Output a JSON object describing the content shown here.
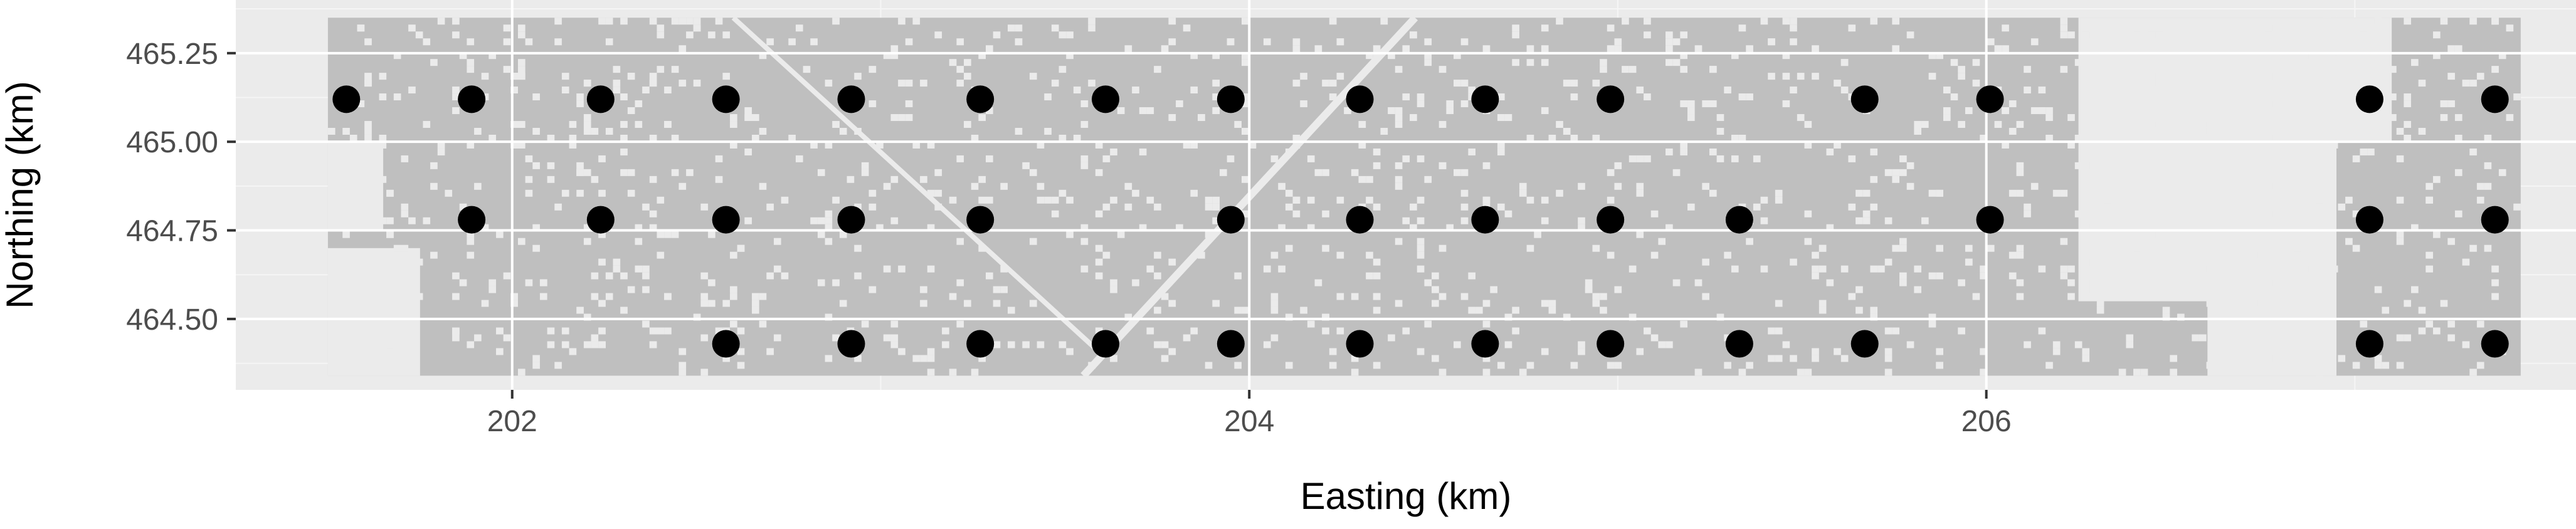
{
  "chart_data": {
    "type": "scatter",
    "xlabel": "Easting (km)",
    "ylabel": "Northing (km)",
    "xlim": [
      201.25,
      207.6
    ],
    "ylim": [
      464.3,
      465.4
    ],
    "x_ticks": [
      202,
      204,
      206
    ],
    "x_tick_labels": [
      "202",
      "204",
      "206"
    ],
    "y_ticks": [
      464.5,
      464.75,
      465.0,
      465.25
    ],
    "y_tick_labels": [
      "464.50",
      "464.75",
      "465.00",
      "465.25"
    ],
    "grid": true,
    "legend": "none",
    "background_raster": {
      "extent_x": [
        201.5,
        207.45
      ],
      "extent_y": [
        464.34,
        465.35
      ],
      "color": "#bfbfbf",
      "panel_color": "#ebebeb"
    },
    "point_color": "#000000",
    "points": [
      {
        "x": 201.55,
        "y": 465.12
      },
      {
        "x": 201.89,
        "y": 465.12
      },
      {
        "x": 202.24,
        "y": 465.12
      },
      {
        "x": 202.58,
        "y": 465.12
      },
      {
        "x": 202.92,
        "y": 465.12
      },
      {
        "x": 203.27,
        "y": 465.12
      },
      {
        "x": 203.61,
        "y": 465.12
      },
      {
        "x": 203.95,
        "y": 465.12
      },
      {
        "x": 204.3,
        "y": 465.12
      },
      {
        "x": 204.64,
        "y": 465.12
      },
      {
        "x": 204.98,
        "y": 465.12
      },
      {
        "x": 205.67,
        "y": 465.12
      },
      {
        "x": 206.01,
        "y": 465.12
      },
      {
        "x": 207.04,
        "y": 465.12
      },
      {
        "x": 207.38,
        "y": 465.12
      },
      {
        "x": 201.89,
        "y": 464.78
      },
      {
        "x": 202.24,
        "y": 464.78
      },
      {
        "x": 202.58,
        "y": 464.78
      },
      {
        "x": 202.92,
        "y": 464.78
      },
      {
        "x": 203.27,
        "y": 464.78
      },
      {
        "x": 203.95,
        "y": 464.78
      },
      {
        "x": 204.3,
        "y": 464.78
      },
      {
        "x": 204.64,
        "y": 464.78
      },
      {
        "x": 204.98,
        "y": 464.78
      },
      {
        "x": 205.33,
        "y": 464.78
      },
      {
        "x": 206.01,
        "y": 464.78
      },
      {
        "x": 207.04,
        "y": 464.78
      },
      {
        "x": 207.38,
        "y": 464.78
      },
      {
        "x": 202.58,
        "y": 464.43
      },
      {
        "x": 202.92,
        "y": 464.43
      },
      {
        "x": 203.27,
        "y": 464.43
      },
      {
        "x": 203.61,
        "y": 464.43
      },
      {
        "x": 203.95,
        "y": 464.43
      },
      {
        "x": 204.3,
        "y": 464.43
      },
      {
        "x": 204.64,
        "y": 464.43
      },
      {
        "x": 204.98,
        "y": 464.43
      },
      {
        "x": 205.33,
        "y": 464.43
      },
      {
        "x": 205.67,
        "y": 464.43
      },
      {
        "x": 207.04,
        "y": 464.43
      },
      {
        "x": 207.38,
        "y": 464.43
      }
    ]
  }
}
